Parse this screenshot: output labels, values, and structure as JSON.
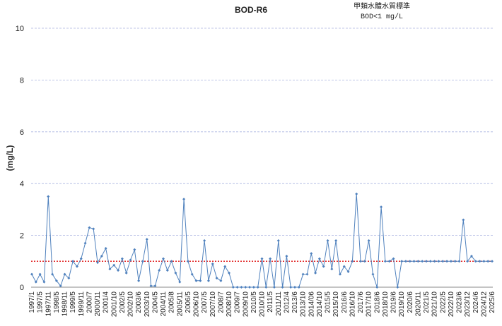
{
  "chart_data": {
    "type": "line",
    "title": "BOD-R6",
    "annotation": [
      "甲類水體水質標準",
      "BOD<1 mg/L"
    ],
    "y_label": "(mg/L)",
    "categories": [
      "1997/1",
      null,
      "1997/5",
      null,
      "1997/11",
      null,
      "1998/5",
      null,
      "1998/11",
      null,
      "1999/5",
      null,
      "1999/11",
      null,
      "2000/7",
      null,
      "2000/11",
      null,
      "2001/4",
      null,
      "2001/10",
      null,
      "2002/5",
      null,
      "2002/10",
      null,
      "2003/6",
      null,
      "2003/10",
      null,
      "2004/5",
      null,
      "2004/11",
      null,
      "2005/8",
      null,
      "2005/11",
      null,
      "2006/5",
      null,
      "2006/10",
      null,
      "2007/5",
      null,
      "2007/10",
      null,
      "2008/7",
      null,
      "2008/10",
      null,
      "2009/7",
      null,
      "2009/10",
      null,
      "2010/5",
      null,
      "2010/10",
      null,
      "2011/5",
      null,
      "2011/11",
      null,
      "2012/4",
      null,
      "2013/6",
      null,
      "2013/10",
      null,
      "2014/06",
      null,
      "2014/10",
      null,
      "2015/5",
      null,
      "2015/10",
      null,
      "2016/6",
      null,
      "2016/10",
      null,
      "2017/6",
      null,
      "2017/10",
      null,
      "2018/6",
      null,
      "2018/10",
      null,
      "2019/6",
      null,
      "2019/10",
      null,
      "2020/6",
      null,
      "2020/11",
      null,
      "2021/5",
      null,
      "2021/10",
      null,
      "2022/5",
      null,
      "2022/10",
      null,
      "2023/6",
      null,
      "2023/12",
      null,
      "2024/6",
      null,
      "2024/12",
      null,
      "2025/6"
    ],
    "series": [
      {
        "name": "BOD",
        "color": "#4f81bd",
        "values": [
          0.5,
          0.2,
          0.5,
          0.2,
          3.5,
          0.5,
          0.25,
          0.05,
          0.5,
          0.35,
          1.0,
          0.8,
          1.1,
          1.7,
          2.3,
          2.25,
          0.95,
          1.2,
          1.5,
          0.7,
          0.85,
          0.65,
          1.1,
          0.55,
          1.05,
          1.45,
          0.25,
          1.0,
          1.85,
          0.05,
          0.05,
          0.65,
          1.1,
          0.65,
          1.0,
          0.55,
          0.2,
          3.4,
          1.0,
          0.5,
          0.25,
          0.25,
          1.8,
          0.25,
          0.9,
          0.35,
          0.25,
          0.8,
          0.55,
          0,
          0,
          0,
          0,
          0,
          0,
          0,
          1.1,
          0,
          1.1,
          0,
          1.8,
          0,
          1.2,
          0,
          0,
          0,
          0.5,
          0.5,
          1.3,
          0.55,
          1.1,
          0.8,
          1.8,
          0.7,
          1.8,
          0.5,
          0.8,
          0.6,
          1.0,
          3.6,
          1.0,
          1.0,
          1.8,
          0.5,
          0,
          3.1,
          1.0,
          1.0,
          1.1,
          0,
          1,
          1,
          1,
          1,
          1,
          1,
          1,
          1,
          1,
          1,
          1,
          1,
          1,
          1,
          1,
          2.6,
          1,
          1.2,
          1,
          1,
          1,
          1,
          1
        ]
      }
    ],
    "reference_line": {
      "value": 1,
      "color": "#e02020"
    },
    "ylim": [
      0,
      10
    ],
    "yticks": [
      0,
      2,
      4,
      6,
      8,
      10
    ],
    "grid": true
  }
}
